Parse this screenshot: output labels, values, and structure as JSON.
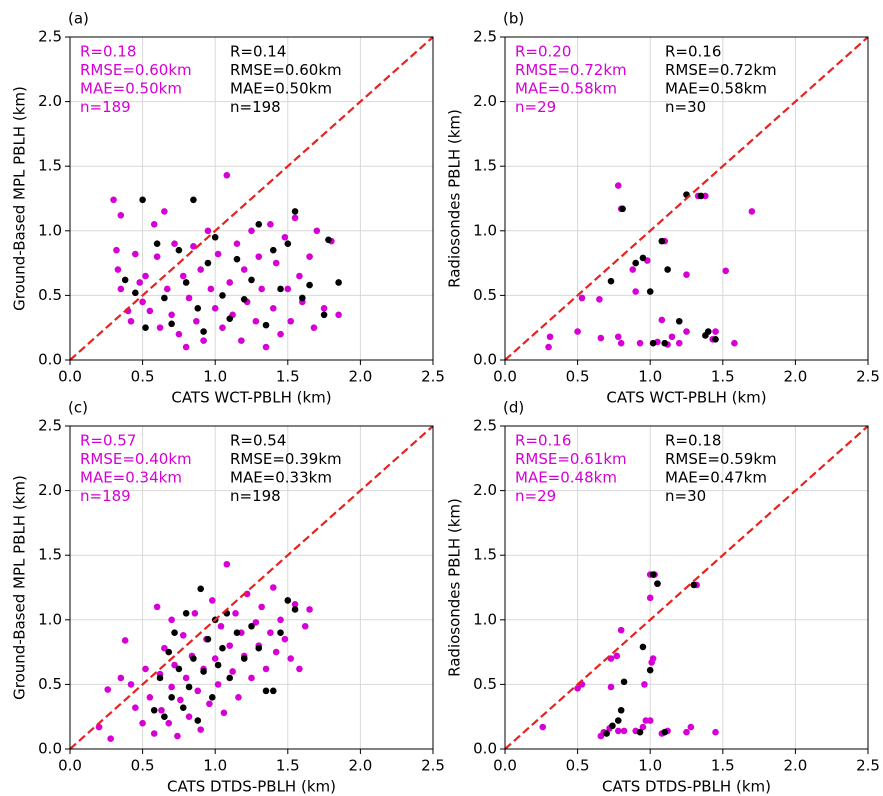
{
  "chart_data": [
    {
      "type": "scatter",
      "panel_label": "(a)",
      "xlabel": "CATS WCT-PBLH (km)",
      "ylabel": "Ground-Based MPL PBLH (km)",
      "xlim": [
        0,
        2.5
      ],
      "ylim": [
        0,
        2.5
      ],
      "xticks": [
        {
          "value": 0,
          "label": "0.0"
        },
        0.5,
        {
          "value": 1,
          "label": "1.0"
        },
        1.5,
        {
          "value": 2,
          "label": "2.0"
        },
        2.5
      ],
      "yticks": [
        {
          "value": 0,
          "label": "0.0"
        },
        0.5,
        {
          "value": 1,
          "label": "1.0"
        },
        1.5,
        {
          "value": 2,
          "label": "2.0"
        },
        2.5
      ],
      "grid": true,
      "identity_line": {
        "color": "#e8221f"
      },
      "series": [
        {
          "color": "#d600d6",
          "annotations": [
            "R=0.18",
            "RMSE=0.60km",
            "MAE=0.50km",
            "n=189"
          ],
          "x": [
            0.3,
            0.32,
            0.33,
            0.35,
            0.35,
            0.4,
            0.42,
            0.45,
            0.48,
            0.5,
            0.52,
            0.55,
            0.58,
            0.6,
            0.62,
            0.65,
            0.67,
            0.7,
            0.72,
            0.75,
            0.78,
            0.8,
            0.82,
            0.85,
            0.87,
            0.9,
            0.92,
            0.95,
            0.97,
            1.0,
            1.02,
            1.05,
            1.08,
            1.1,
            1.12,
            1.15,
            1.18,
            1.2,
            1.22,
            1.25,
            1.28,
            1.3,
            1.32,
            1.35,
            1.38,
            1.4,
            1.42,
            1.45,
            1.48,
            1.5,
            1.52,
            1.55,
            1.58,
            1.6,
            1.65,
            1.68,
            1.7,
            1.75,
            1.8,
            1.85
          ],
          "y": [
            1.24,
            0.85,
            0.7,
            1.12,
            0.55,
            0.38,
            0.3,
            0.82,
            0.6,
            0.45,
            0.65,
            0.38,
            1.05,
            0.8,
            0.25,
            1.15,
            0.55,
            0.35,
            0.9,
            0.2,
            0.65,
            0.1,
            0.48,
            0.88,
            0.3,
            0.7,
            0.15,
            1.0,
            0.55,
            0.4,
            0.82,
            0.25,
            1.43,
            0.6,
            0.35,
            0.9,
            0.15,
            0.7,
            0.45,
            1.0,
            0.3,
            0.8,
            0.55,
            0.1,
            1.05,
            0.4,
            0.75,
            0.2,
            0.95,
            0.55,
            0.3,
            1.1,
            0.65,
            0.45,
            0.8,
            0.25,
            1.0,
            0.4,
            0.92,
            0.35
          ]
        },
        {
          "color": "#000000",
          "annotations": [
            "R=0.14",
            "RMSE=0.60km",
            "MAE=0.50km",
            "n=198"
          ],
          "x": [
            0.38,
            0.45,
            0.5,
            0.52,
            0.6,
            0.65,
            0.7,
            0.75,
            0.8,
            0.85,
            0.88,
            0.92,
            0.95,
            1.0,
            1.05,
            1.1,
            1.15,
            1.2,
            1.25,
            1.3,
            1.35,
            1.4,
            1.45,
            1.5,
            1.55,
            1.6,
            1.65,
            1.75,
            1.78,
            1.85
          ],
          "y": [
            0.62,
            0.52,
            1.24,
            0.25,
            0.9,
            0.48,
            0.28,
            0.85,
            0.6,
            1.24,
            0.4,
            0.22,
            0.75,
            0.95,
            0.5,
            0.32,
            0.78,
            0.47,
            0.62,
            1.05,
            0.27,
            0.85,
            0.55,
            0.9,
            1.15,
            0.48,
            0.58,
            0.35,
            0.93,
            0.6
          ]
        }
      ]
    },
    {
      "type": "scatter",
      "panel_label": "(b)",
      "xlabel": "CATS WCT-PBLH (km)",
      "ylabel": "Radiosondes PBLH (km)",
      "xlim": [
        0,
        2.5
      ],
      "ylim": [
        0,
        2.5
      ],
      "xticks": [
        {
          "value": 0,
          "label": "0.0"
        },
        0.5,
        {
          "value": 1,
          "label": "1.0"
        },
        1.5,
        {
          "value": 2,
          "label": "2.0"
        },
        2.5
      ],
      "yticks": [
        {
          "value": 0,
          "label": "0.0"
        },
        0.5,
        {
          "value": 1,
          "label": "1.0"
        },
        1.5,
        {
          "value": 2,
          "label": "2.0"
        },
        2.5
      ],
      "grid": true,
      "identity_line": {
        "color": "#e8221f"
      },
      "series": [
        {
          "color": "#d600d6",
          "annotations": [
            "R=0.20",
            "RMSE=0.72km",
            "MAE=0.58km",
            "n=29"
          ],
          "x": [
            0.3,
            0.31,
            0.5,
            0.53,
            0.65,
            0.66,
            0.78,
            0.8,
            0.78,
            0.8,
            0.9,
            0.88,
            0.93,
            0.98,
            1.05,
            1.08,
            1.12,
            1.1,
            1.15,
            1.2,
            1.25,
            1.25,
            1.33,
            1.38,
            1.45,
            1.52,
            1.58,
            1.7,
            1.43
          ],
          "y": [
            0.1,
            0.18,
            0.22,
            0.48,
            0.47,
            0.17,
            1.35,
            1.17,
            0.18,
            0.13,
            0.53,
            0.7,
            0.13,
            0.77,
            0.14,
            0.31,
            0.12,
            0.92,
            0.18,
            0.13,
            0.66,
            0.22,
            1.27,
            1.27,
            0.22,
            0.69,
            0.13,
            1.15,
            0.16
          ]
        },
        {
          "color": "#000000",
          "annotations": [
            "R=0.16",
            "RMSE=0.72km",
            "MAE=0.58km",
            "n=30"
          ],
          "x": [
            0.73,
            0.81,
            0.9,
            0.95,
            1.0,
            1.02,
            1.08,
            1.1,
            1.12,
            1.2,
            1.25,
            1.35,
            1.38,
            1.4,
            1.45
          ],
          "y": [
            0.61,
            1.17,
            0.75,
            0.79,
            0.53,
            0.13,
            0.92,
            0.13,
            0.7,
            0.3,
            1.28,
            1.27,
            0.19,
            0.22,
            0.16
          ]
        }
      ]
    },
    {
      "type": "scatter",
      "panel_label": "(c)",
      "xlabel": "CATS DTDS-PBLH (km)",
      "ylabel": "Ground-Based MPL PBLH (km)",
      "xlim": [
        0,
        2.5
      ],
      "ylim": [
        0,
        2.5
      ],
      "xticks": [
        {
          "value": 0,
          "label": "0.0"
        },
        0.5,
        {
          "value": 1,
          "label": "1.0"
        },
        1.5,
        {
          "value": 2,
          "label": "2.0"
        },
        2.5
      ],
      "yticks": [
        {
          "value": 0,
          "label": "0.0"
        },
        0.5,
        {
          "value": 1,
          "label": "1.0"
        },
        1.5,
        {
          "value": 2,
          "label": "2.0"
        },
        2.5
      ],
      "grid": true,
      "identity_line": {
        "color": "#e8221f"
      },
      "series": [
        {
          "color": "#d600d6",
          "annotations": [
            "R=0.57",
            "RMSE=0.40km",
            "MAE=0.34km",
            "n=189"
          ],
          "x": [
            0.2,
            0.26,
            0.28,
            0.35,
            0.38,
            0.42,
            0.45,
            0.5,
            0.52,
            0.55,
            0.58,
            0.6,
            0.62,
            0.63,
            0.65,
            0.68,
            0.7,
            0.7,
            0.72,
            0.74,
            0.76,
            0.78,
            0.8,
            0.82,
            0.84,
            0.86,
            0.88,
            0.9,
            0.92,
            0.94,
            0.96,
            0.98,
            1.0,
            1.02,
            1.04,
            1.06,
            1.08,
            1.1,
            1.12,
            1.14,
            1.16,
            1.18,
            1.2,
            1.22,
            1.25,
            1.28,
            1.3,
            1.32,
            1.35,
            1.38,
            1.4,
            1.42,
            1.45,
            1.48,
            1.5,
            1.52,
            1.55,
            1.58,
            1.62,
            1.65
          ],
          "y": [
            0.17,
            0.46,
            0.08,
            0.55,
            0.84,
            0.5,
            0.32,
            0.2,
            0.62,
            0.4,
            0.12,
            1.1,
            0.58,
            0.3,
            0.78,
            0.2,
            0.48,
            1.0,
            0.65,
            0.1,
            0.38,
            0.88,
            0.55,
            0.25,
            0.72,
            1.05,
            0.45,
            0.15,
            0.62,
            0.85,
            0.35,
            1.15,
            0.7,
            0.5,
            0.95,
            0.28,
            1.43,
            0.8,
            0.6,
            1.05,
            0.4,
            0.9,
            0.72,
            1.2,
            0.55,
            0.98,
            0.8,
            1.1,
            0.62,
            0.9,
            1.25,
            0.75,
            1.0,
            0.85,
            1.15,
            0.7,
            1.12,
            0.62,
            0.95,
            1.08
          ]
        },
        {
          "color": "#000000",
          "annotations": [
            "R=0.54",
            "RMSE=0.39km",
            "MAE=0.33km",
            "n=198"
          ],
          "x": [
            0.58,
            0.62,
            0.65,
            0.68,
            0.7,
            0.72,
            0.75,
            0.78,
            0.8,
            0.82,
            0.85,
            0.88,
            0.9,
            0.92,
            0.95,
            0.98,
            1.0,
            1.02,
            1.05,
            1.08,
            1.1,
            1.15,
            1.2,
            1.25,
            1.3,
            1.35,
            1.4,
            1.45,
            1.55,
            1.5
          ],
          "y": [
            0.3,
            0.55,
            0.25,
            0.75,
            0.4,
            0.9,
            0.62,
            0.32,
            1.05,
            0.48,
            0.7,
            0.22,
            1.24,
            0.6,
            0.85,
            0.4,
            1.0,
            0.65,
            0.78,
            1.05,
            0.55,
            0.9,
            0.7,
            0.95,
            0.78,
            0.45,
            0.45,
            0.9,
            1.08,
            1.15
          ]
        }
      ]
    },
    {
      "type": "scatter",
      "panel_label": "(d)",
      "xlabel": "CATS DTDS-PBLH (km)",
      "ylabel": "Radiosondes PBLH (km)",
      "xlim": [
        0,
        2.5
      ],
      "ylim": [
        0,
        2.5
      ],
      "xticks": [
        {
          "value": 0,
          "label": "0.0"
        },
        0.5,
        {
          "value": 1,
          "label": "1.0"
        },
        1.5,
        {
          "value": 2,
          "label": "2.0"
        },
        2.5
      ],
      "yticks": [
        {
          "value": 0,
          "label": "0.0"
        },
        0.5,
        {
          "value": 1,
          "label": "1.0"
        },
        1.5,
        {
          "value": 2,
          "label": "2.0"
        },
        2.5
      ],
      "grid": true,
      "identity_line": {
        "color": "#e8221f"
      },
      "series": [
        {
          "color": "#d600d6",
          "annotations": [
            "R=0.16",
            "RMSE=0.61km",
            "MAE=0.48km",
            "n=29"
          ],
          "x": [
            0.26,
            0.5,
            0.53,
            0.66,
            0.68,
            0.72,
            0.73,
            0.73,
            0.77,
            0.8,
            0.78,
            0.82,
            0.9,
            0.95,
            0.97,
            1.0,
            1.0,
            1.0,
            1.01,
            1.02,
            1.03,
            1.05,
            1.08,
            1.12,
            1.25,
            1.28,
            1.32,
            1.45,
            0.96
          ],
          "y": [
            0.17,
            0.47,
            0.5,
            0.1,
            0.13,
            0.16,
            0.48,
            0.7,
            0.72,
            0.92,
            0.14,
            0.14,
            0.14,
            0.17,
            0.22,
            0.22,
            1.35,
            1.17,
            0.67,
            0.7,
            1.35,
            1.28,
            0.12,
            0.14,
            0.13,
            0.17,
            1.27,
            0.13,
            0.5
          ]
        },
        {
          "color": "#000000",
          "annotations": [
            "R=0.18",
            "RMSE=0.59km",
            "MAE=0.47km",
            "n=30"
          ],
          "x": [
            0.7,
            0.74,
            0.78,
            0.8,
            0.82,
            0.93,
            0.95,
            1.0,
            1.02,
            1.05,
            1.1,
            1.3
          ],
          "y": [
            0.12,
            0.18,
            0.22,
            0.3,
            0.52,
            0.13,
            0.79,
            0.61,
            1.35,
            1.28,
            0.13,
            1.27
          ]
        }
      ]
    }
  ]
}
